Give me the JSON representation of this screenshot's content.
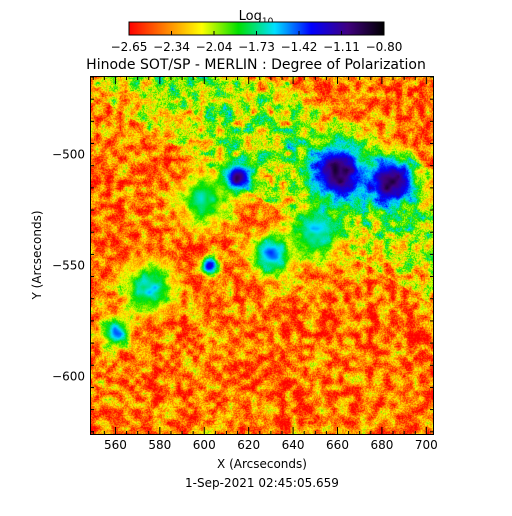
{
  "chart_data": {
    "type": "heatmap",
    "title": "Hinode SOT/SP - MERLIN : Degree of Polarization",
    "subtitle": "1-Sep-2021 02:45:05.659",
    "xlabel": "X (Arcseconds)",
    "ylabel": "Y (Arcseconds)",
    "xlim": [
      549,
      703
    ],
    "ylim": [
      -626,
      -465
    ],
    "x_ticks": [
      560,
      580,
      600,
      620,
      640,
      660,
      680,
      700
    ],
    "y_ticks": [
      -500,
      -550,
      -600
    ],
    "colorbar": {
      "label": "Log",
      "label_subscript": "10",
      "range": [
        -2.65,
        -0.8
      ],
      "tick_labels": [
        "-2.65",
        "-2.34",
        "-2.04",
        "-1.73",
        "-1.42",
        "-1.11",
        "-0.80"
      ],
      "colors": [
        "#ff0000",
        "#ff8000",
        "#ffff00",
        "#00e000",
        "#00e0ff",
        "#0000ff",
        "#400080",
        "#000000"
      ]
    },
    "background_value": -2.4,
    "features": [
      {
        "x": 660,
        "y": -508,
        "radius": 16,
        "peak": -0.95
      },
      {
        "x": 684,
        "y": -512,
        "radius": 14,
        "peak": -0.95
      },
      {
        "x": 615,
        "y": -510,
        "radius": 9,
        "peak": -1.05
      },
      {
        "x": 602,
        "y": -550,
        "radius": 5,
        "peak": -1.2
      },
      {
        "x": 630,
        "y": -545,
        "radius": 12,
        "peak": -1.5
      },
      {
        "x": 575,
        "y": -560,
        "radius": 14,
        "peak": -1.6
      },
      {
        "x": 560,
        "y": -580,
        "radius": 8,
        "peak": -1.45
      },
      {
        "x": 600,
        "y": -520,
        "radius": 14,
        "peak": -1.7
      },
      {
        "x": 650,
        "y": -535,
        "radius": 14,
        "peak": -1.6
      }
    ]
  }
}
